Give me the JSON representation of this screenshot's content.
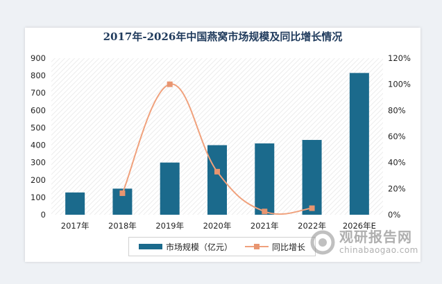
{
  "chart_data": {
    "type": "bar+line",
    "title": "2017年-2026年中国燕窝市场规模及同比增长情况",
    "categories": [
      "2017年",
      "2018年",
      "2019年",
      "2020年",
      "2021年",
      "2022年",
      "2026年E"
    ],
    "series": [
      {
        "name": "市场规模（亿元）",
        "type": "bar",
        "axis": "left",
        "values": [
          128,
          150,
          300,
          400,
          410,
          430,
          815
        ]
      },
      {
        "name": "同比增长",
        "type": "line",
        "axis": "right",
        "values": [
          null,
          16.5,
          100,
          33,
          2.5,
          5,
          null
        ]
      }
    ],
    "left_axis": {
      "min": 0,
      "max": 900,
      "step": 100,
      "ticks": [
        "0",
        "100",
        "200",
        "300",
        "400",
        "500",
        "600",
        "700",
        "800",
        "900"
      ]
    },
    "right_axis": {
      "min": 0,
      "max": 120,
      "step": 20,
      "ticks": [
        "0%",
        "20%",
        "40%",
        "60%",
        "80%",
        "100%",
        "120%"
      ]
    },
    "colors": {
      "bar": "#1b6a8c",
      "line": "#f0a17c",
      "marker": "#e89570"
    },
    "legend": {
      "position": "bottom"
    }
  },
  "watermark": {
    "cn": "观研报告网",
    "en": "chinabaogao.com"
  }
}
